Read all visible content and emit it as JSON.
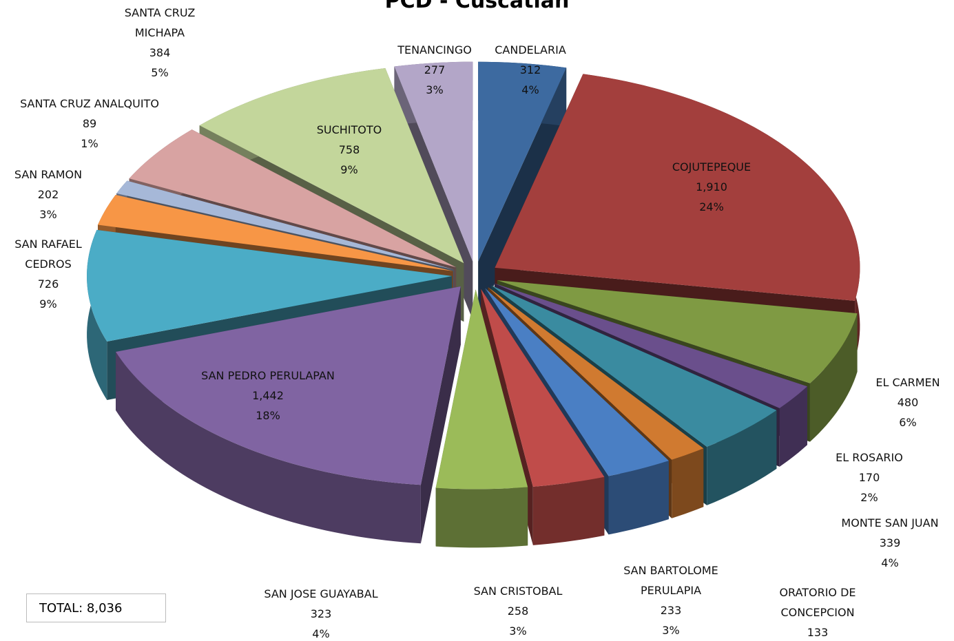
{
  "chart_data": {
    "type": "pie",
    "title": "PCD - Cuscatlan",
    "categories": [
      "CANDELARIA",
      "COJUTEPEQUE",
      "EL CARMEN",
      "EL ROSARIO",
      "MONTE SAN JUAN",
      "ORATORIO DE CONCEPCION",
      "SAN BARTOLOME PERULAPIA",
      "SAN CRISTOBAL",
      "SAN JOSE GUAYABAL",
      "SAN PEDRO PERULAPAN",
      "SAN RAFAEL CEDROS",
      "SAN RAMON",
      "SANTA CRUZ ANALQUITO",
      "SANTA CRUZ MICHAPA",
      "SUCHITOTO",
      "TENANCINGO"
    ],
    "values": [
      312,
      1910,
      480,
      170,
      339,
      133,
      233,
      258,
      323,
      1442,
      726,
      202,
      89,
      384,
      758,
      277
    ],
    "value_labels": [
      "312",
      "1,910",
      "480",
      "170",
      "339",
      "133",
      "233",
      "258",
      "323",
      "1,442",
      "726",
      "202",
      "89",
      "384",
      "758",
      "277"
    ],
    "percent_labels": [
      "4%",
      "24%",
      "6%",
      "2%",
      "4%",
      null,
      "3%",
      "3%",
      "4%",
      "18%",
      "9%",
      "3%",
      "1%",
      "5%",
      "9%",
      "3%"
    ],
    "colors": [
      "#3d6aa0",
      "#a33f3d",
      "#7f9a43",
      "#6a4f8c",
      "#3a8ba0",
      "#d07a30",
      "#4a7fc4",
      "#c04c4a",
      "#9bbb59",
      "#8064a2",
      "#4bacc6",
      "#f79646",
      "#a6b8d8",
      "#d8a3a2",
      "#c3d69b",
      "#b3a6c8"
    ],
    "total_label": "TOTAL: 8,036"
  }
}
